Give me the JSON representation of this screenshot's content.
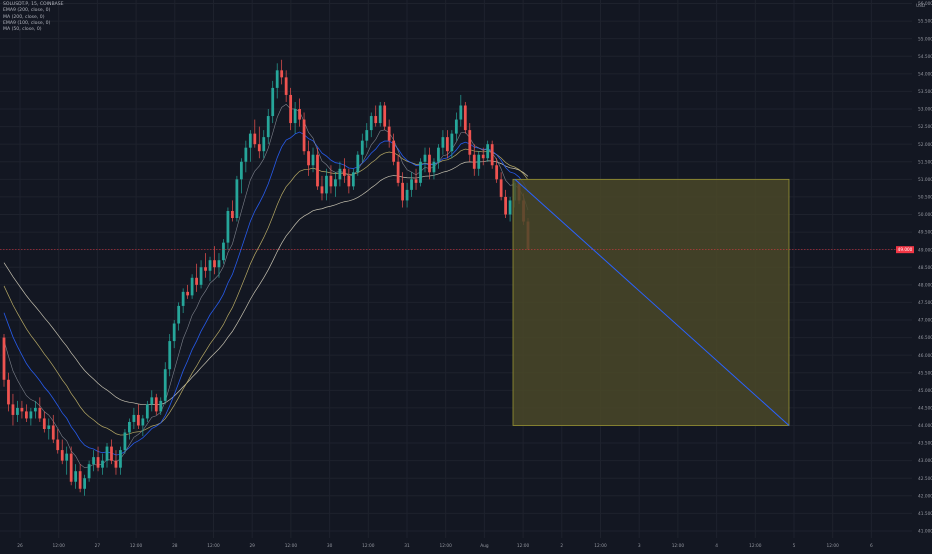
{
  "header": {
    "symbol_line": "SOLUSDT.P, 15, COINBASE",
    "indicators": [
      "EMA9 (200, close, 0)",
      "MA (200, close, 0)",
      "EMA9 (100, close, 0)",
      "MA (50, close, 0)"
    ]
  },
  "colors": {
    "background": "#131722",
    "grid": "#1e222d",
    "candle_up": "#26a69a",
    "candle_down": "#ef5350",
    "ema_blue": "#2962ff",
    "ma_yellow": "#c8b86b",
    "ma_light": "#d9d4c0",
    "ma_grey": "#8b8f99",
    "box_fill": "#4a4828",
    "box_border": "#9a9533",
    "diagonal": "#2962ff",
    "price_marker": "#f23645"
  },
  "chart_data": {
    "type": "candlestick",
    "y_axis": {
      "currency": "USD",
      "ylim": [
        40.8,
        56.1
      ],
      "ticks": [
        "56.000",
        "55.500",
        "55.000",
        "54.500",
        "54.000",
        "53.500",
        "53.000",
        "52.500",
        "52.000",
        "51.500",
        "51.000",
        "50.500",
        "50.000",
        "49.500",
        "49.000",
        "48.500",
        "48.000",
        "47.500",
        "47.000",
        "46.500",
        "46.000",
        "45.500",
        "45.000",
        "44.500",
        "44.000",
        "43.500",
        "43.000",
        "42.500",
        "42.000",
        "41.500",
        "41.000"
      ]
    },
    "x_axis": {
      "ticks": [
        "26",
        "12:00",
        "27",
        "12:00",
        "28",
        "12:00",
        "29",
        "12:00",
        "30",
        "12:00",
        "31",
        "12:00",
        "Aug",
        "12:00",
        "2",
        "12:00",
        "3",
        "12:00",
        "4",
        "12:00",
        "5",
        "12:00",
        "6"
      ]
    },
    "last_price": {
      "label": "49.000",
      "value": 49.0
    },
    "candles_key": [
      "open",
      "high",
      "low",
      "close"
    ],
    "candles": [
      [
        46.5,
        46.6,
        45.1,
        45.3
      ],
      [
        45.3,
        45.5,
        44.4,
        44.6
      ],
      [
        44.6,
        44.9,
        44.0,
        44.3
      ],
      [
        44.3,
        44.7,
        44.1,
        44.5
      ],
      [
        44.5,
        44.7,
        44.2,
        44.4
      ],
      [
        44.4,
        44.6,
        44.1,
        44.2
      ],
      [
        44.2,
        44.5,
        44.0,
        44.4
      ],
      [
        44.4,
        44.7,
        44.2,
        44.5
      ],
      [
        44.5,
        44.8,
        44.1,
        44.2
      ],
      [
        44.2,
        44.4,
        43.8,
        43.9
      ],
      [
        43.9,
        44.2,
        43.6,
        44.0
      ],
      [
        44.0,
        44.3,
        43.5,
        43.6
      ],
      [
        43.6,
        43.9,
        43.2,
        43.3
      ],
      [
        43.3,
        43.6,
        42.9,
        43.0
      ],
      [
        43.0,
        43.4,
        42.6,
        43.2
      ],
      [
        43.2,
        43.4,
        42.3,
        42.4
      ],
      [
        42.4,
        42.9,
        42.2,
        42.7
      ],
      [
        42.7,
        42.9,
        42.1,
        42.2
      ],
      [
        42.2,
        42.6,
        42.0,
        42.5
      ],
      [
        42.5,
        43.0,
        42.4,
        42.9
      ],
      [
        42.9,
        43.3,
        42.7,
        43.1
      ],
      [
        43.1,
        43.4,
        42.7,
        42.8
      ],
      [
        42.8,
        43.2,
        42.6,
        43.0
      ],
      [
        43.0,
        43.5,
        42.8,
        43.4
      ],
      [
        43.4,
        43.6,
        42.9,
        43.0
      ],
      [
        43.0,
        43.3,
        42.6,
        42.8
      ],
      [
        42.8,
        43.4,
        42.6,
        43.3
      ],
      [
        43.3,
        43.9,
        43.2,
        43.8
      ],
      [
        43.8,
        44.2,
        43.6,
        44.1
      ],
      [
        44.1,
        44.5,
        43.9,
        44.3
      ],
      [
        44.3,
        44.6,
        43.9,
        44.0
      ],
      [
        44.0,
        44.3,
        43.7,
        44.2
      ],
      [
        44.2,
        44.7,
        44.1,
        44.6
      ],
      [
        44.6,
        45.0,
        44.4,
        44.8
      ],
      [
        44.8,
        44.9,
        44.3,
        44.4
      ],
      [
        44.4,
        44.8,
        44.3,
        44.7
      ],
      [
        44.7,
        45.8,
        44.6,
        45.6
      ],
      [
        45.6,
        46.6,
        45.4,
        46.4
      ],
      [
        46.4,
        47.0,
        46.2,
        46.9
      ],
      [
        46.9,
        47.5,
        46.7,
        47.4
      ],
      [
        47.4,
        47.9,
        47.2,
        47.8
      ],
      [
        47.8,
        48.0,
        47.6,
        47.7
      ],
      [
        47.7,
        48.3,
        47.6,
        48.2
      ],
      [
        48.2,
        48.6,
        47.8,
        48.0
      ],
      [
        48.0,
        48.7,
        47.9,
        48.5
      ],
      [
        48.5,
        48.9,
        48.2,
        48.4
      ],
      [
        48.4,
        48.8,
        48.1,
        48.7
      ],
      [
        48.7,
        49.1,
        48.3,
        48.5
      ],
      [
        48.5,
        48.9,
        48.2,
        48.7
      ],
      [
        48.7,
        49.3,
        48.6,
        49.2
      ],
      [
        49.2,
        50.2,
        49.0,
        50.1
      ],
      [
        50.1,
        50.4,
        49.8,
        49.9
      ],
      [
        49.9,
        51.1,
        49.8,
        51.0
      ],
      [
        51.0,
        51.6,
        50.6,
        51.5
      ],
      [
        51.5,
        52.1,
        51.2,
        51.9
      ],
      [
        51.9,
        52.4,
        51.5,
        52.3
      ],
      [
        52.3,
        52.7,
        51.9,
        52.0
      ],
      [
        52.0,
        52.5,
        51.6,
        51.8
      ],
      [
        51.8,
        52.4,
        51.6,
        52.2
      ],
      [
        52.2,
        53.0,
        52.0,
        52.8
      ],
      [
        52.8,
        53.8,
        52.6,
        53.6
      ],
      [
        53.6,
        54.3,
        53.3,
        54.1
      ],
      [
        54.1,
        54.4,
        53.7,
        53.9
      ],
      [
        53.9,
        54.1,
        53.2,
        53.4
      ],
      [
        53.4,
        53.6,
        52.4,
        52.6
      ],
      [
        52.6,
        53.2,
        52.3,
        53.0
      ],
      [
        53.0,
        53.3,
        52.5,
        52.7
      ],
      [
        52.7,
        52.9,
        51.7,
        51.8
      ],
      [
        51.8,
        52.1,
        51.1,
        51.4
      ],
      [
        51.4,
        51.9,
        51.2,
        51.7
      ],
      [
        51.7,
        51.9,
        50.7,
        50.8
      ],
      [
        50.8,
        51.1,
        50.4,
        50.6
      ],
      [
        50.6,
        51.3,
        50.4,
        51.1
      ],
      [
        51.1,
        51.4,
        50.6,
        50.8
      ],
      [
        50.8,
        51.2,
        50.5,
        51.0
      ],
      [
        51.0,
        51.5,
        50.8,
        51.3
      ],
      [
        51.3,
        51.6,
        50.9,
        51.1
      ],
      [
        51.1,
        51.3,
        50.6,
        50.8
      ],
      [
        50.8,
        51.3,
        50.7,
        51.2
      ],
      [
        51.2,
        51.8,
        51.1,
        51.7
      ],
      [
        51.7,
        52.3,
        51.5,
        52.1
      ],
      [
        52.1,
        52.6,
        51.9,
        52.4
      ],
      [
        52.4,
        52.9,
        52.2,
        52.8
      ],
      [
        52.8,
        53.1,
        52.5,
        52.6
      ],
      [
        52.6,
        53.2,
        52.5,
        53.1
      ],
      [
        53.1,
        53.2,
        52.4,
        52.5
      ],
      [
        52.5,
        52.7,
        51.9,
        52.1
      ],
      [
        52.1,
        52.3,
        51.4,
        51.5
      ],
      [
        51.5,
        51.7,
        50.8,
        50.9
      ],
      [
        50.9,
        51.2,
        50.2,
        50.4
      ],
      [
        50.4,
        50.9,
        50.2,
        50.7
      ],
      [
        50.7,
        51.2,
        50.5,
        51.0
      ],
      [
        51.0,
        51.3,
        50.7,
        50.9
      ],
      [
        50.9,
        51.6,
        50.8,
        51.5
      ],
      [
        51.5,
        51.9,
        51.2,
        51.7
      ],
      [
        51.7,
        51.9,
        51.0,
        51.2
      ],
      [
        51.2,
        51.6,
        51.0,
        51.5
      ],
      [
        51.5,
        52.0,
        51.3,
        51.9
      ],
      [
        51.9,
        52.4,
        51.7,
        52.2
      ],
      [
        52.2,
        52.4,
        51.6,
        51.8
      ],
      [
        51.8,
        52.4,
        51.6,
        52.3
      ],
      [
        52.3,
        52.9,
        52.1,
        52.7
      ],
      [
        52.7,
        53.4,
        52.5,
        53.1
      ],
      [
        53.1,
        53.2,
        52.3,
        52.4
      ],
      [
        52.4,
        52.6,
        51.5,
        51.7
      ],
      [
        51.7,
        52.0,
        51.1,
        51.3
      ],
      [
        51.3,
        51.8,
        51.1,
        51.7
      ],
      [
        51.7,
        51.9,
        51.4,
        51.6
      ],
      [
        51.6,
        52.1,
        51.5,
        52.0
      ],
      [
        52.0,
        52.1,
        51.3,
        51.4
      ],
      [
        51.4,
        51.6,
        50.9,
        51.0
      ],
      [
        51.0,
        51.2,
        50.4,
        50.5
      ],
      [
        50.5,
        50.7,
        49.9,
        50.0
      ],
      [
        50.0,
        50.5,
        49.8,
        50.4
      ],
      [
        50.4,
        51.0,
        50.2,
        50.9
      ],
      [
        50.9,
        51.0,
        50.3,
        50.4
      ],
      [
        50.4,
        50.6,
        49.7,
        49.8
      ],
      [
        49.8,
        49.9,
        49.0,
        49.0
      ]
    ]
  }
}
